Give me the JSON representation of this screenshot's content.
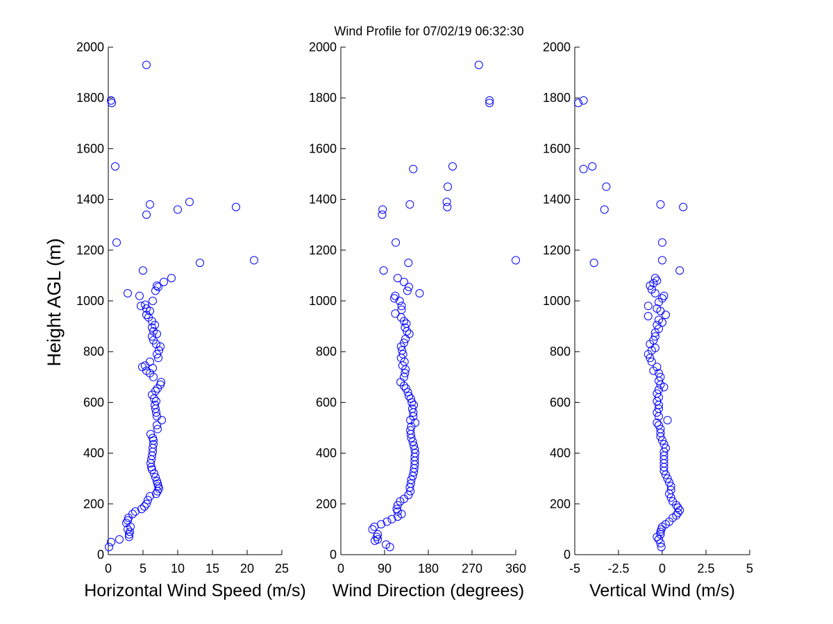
{
  "figure": {
    "title": "Wind Profile for  07/02/19 06:32:30",
    "marker_color": "#0000ff"
  },
  "chart_data": [
    {
      "type": "scatter",
      "id": "speed",
      "xlabel": "Horizontal Wind Speed (m/s)",
      "ylabel": "Height AGL (m)",
      "xlim": [
        0,
        25
      ],
      "ylim": [
        0,
        2000
      ],
      "xticks": [
        0,
        5,
        10,
        15,
        20,
        25
      ],
      "xtick_labels": [
        "0",
        "5",
        "10",
        "15",
        "20",
        "25"
      ],
      "yticks": [
        0,
        200,
        400,
        600,
        800,
        1000,
        1200,
        1400,
        1600,
        1800,
        2000
      ],
      "ytick_labels": [
        "0",
        "200",
        "400",
        "600",
        "800",
        "1000",
        "1200",
        "1400",
        "1600",
        "1800",
        "2000"
      ],
      "points": [
        [
          0.1,
          30
        ],
        [
          0.4,
          50
        ],
        [
          1.6,
          60
        ],
        [
          3.0,
          70
        ],
        [
          3.0,
          80
        ],
        [
          3.1,
          90
        ],
        [
          2.8,
          100
        ],
        [
          3.2,
          110
        ],
        [
          2.6,
          125
        ],
        [
          2.8,
          135
        ],
        [
          2.9,
          145
        ],
        [
          3.5,
          160
        ],
        [
          3.9,
          170
        ],
        [
          4.8,
          180
        ],
        [
          5.2,
          190
        ],
        [
          5.5,
          200
        ],
        [
          5.7,
          215
        ],
        [
          6.0,
          230
        ],
        [
          6.9,
          240
        ],
        [
          7.1,
          250
        ],
        [
          7.3,
          260
        ],
        [
          7.2,
          270
        ],
        [
          7.1,
          280
        ],
        [
          7.0,
          290
        ],
        [
          6.8,
          305
        ],
        [
          6.6,
          320
        ],
        [
          6.3,
          335
        ],
        [
          6.2,
          345
        ],
        [
          6.1,
          360
        ],
        [
          6.2,
          375
        ],
        [
          6.3,
          390
        ],
        [
          6.4,
          405
        ],
        [
          6.4,
          420
        ],
        [
          6.5,
          435
        ],
        [
          6.5,
          450
        ],
        [
          6.4,
          460
        ],
        [
          6.1,
          475
        ],
        [
          7.1,
          495
        ],
        [
          7.0,
          510
        ],
        [
          7.7,
          530
        ],
        [
          7.0,
          545
        ],
        [
          6.9,
          560
        ],
        [
          6.8,
          575
        ],
        [
          6.7,
          590
        ],
        [
          6.9,
          605
        ],
        [
          6.6,
          615
        ],
        [
          6.3,
          630
        ],
        [
          6.8,
          645
        ],
        [
          7.1,
          655
        ],
        [
          7.5,
          670
        ],
        [
          7.6,
          680
        ],
        [
          6.5,
          700
        ],
        [
          6.0,
          715
        ],
        [
          5.5,
          725
        ],
        [
          6.4,
          735
        ],
        [
          5.3,
          745
        ],
        [
          4.9,
          740
        ],
        [
          6.0,
          760
        ],
        [
          7.2,
          775
        ],
        [
          7.0,
          790
        ],
        [
          7.3,
          805
        ],
        [
          7.5,
          820
        ],
        [
          6.9,
          830
        ],
        [
          6.5,
          845
        ],
        [
          6.3,
          860
        ],
        [
          7.0,
          870
        ],
        [
          6.5,
          880
        ],
        [
          6.3,
          895
        ],
        [
          6.7,
          905
        ],
        [
          6.3,
          920
        ],
        [
          5.8,
          935
        ],
        [
          5.5,
          945
        ],
        [
          6.0,
          960
        ],
        [
          5.5,
          970
        ],
        [
          5.3,
          985
        ],
        [
          4.7,
          980
        ],
        [
          6.4,
          1000
        ],
        [
          4.5,
          1020
        ],
        [
          6.8,
          1040
        ],
        [
          2.8,
          1030
        ],
        [
          7.2,
          1055
        ],
        [
          7.0,
          1060
        ],
        [
          8.0,
          1075
        ],
        [
          9.1,
          1090
        ],
        [
          5.0,
          1120
        ],
        [
          13.2,
          1150
        ],
        [
          21.0,
          1160
        ],
        [
          1.2,
          1230
        ],
        [
          5.5,
          1340
        ],
        [
          10.0,
          1360
        ],
        [
          18.4,
          1370
        ],
        [
          6.0,
          1380
        ],
        [
          11.7,
          1390
        ],
        [
          1.0,
          1530
        ],
        [
          0.5,
          1780
        ],
        [
          0.4,
          1790
        ],
        [
          5.5,
          1930
        ]
      ]
    },
    {
      "type": "scatter",
      "id": "direction",
      "xlabel": "Wind Direction (degrees)",
      "xlim": [
        0,
        360
      ],
      "ylim": [
        0,
        2000
      ],
      "xticks": [
        0,
        90,
        180,
        270,
        360
      ],
      "xtick_labels": [
        "0",
        "90",
        "180",
        "270",
        "360"
      ],
      "yticks": [
        0,
        200,
        400,
        600,
        800,
        1000,
        1200,
        1400,
        1600,
        1800,
        2000
      ],
      "ytick_labels": [
        "0",
        "200",
        "400",
        "600",
        "800",
        "1000",
        "1200",
        "1400",
        "1600",
        "1800",
        "2000"
      ],
      "points": [
        [
          101,
          30
        ],
        [
          93,
          40
        ],
        [
          70,
          55
        ],
        [
          76,
          60
        ],
        [
          74,
          70
        ],
        [
          76,
          80
        ],
        [
          65,
          100
        ],
        [
          69,
          110
        ],
        [
          83,
          120
        ],
        [
          95,
          130
        ],
        [
          105,
          140
        ],
        [
          117,
          150
        ],
        [
          125,
          160
        ],
        [
          117,
          170
        ],
        [
          115,
          180
        ],
        [
          117,
          195
        ],
        [
          122,
          210
        ],
        [
          130,
          220
        ],
        [
          139,
          235
        ],
        [
          143,
          250
        ],
        [
          142,
          265
        ],
        [
          144,
          280
        ],
        [
          145,
          295
        ],
        [
          148,
          310
        ],
        [
          150,
          325
        ],
        [
          151,
          340
        ],
        [
          152,
          355
        ],
        [
          152,
          370
        ],
        [
          152,
          385
        ],
        [
          153,
          400
        ],
        [
          152,
          415
        ],
        [
          150,
          430
        ],
        [
          148,
          445
        ],
        [
          145,
          460
        ],
        [
          144,
          475
        ],
        [
          143,
          490
        ],
        [
          145,
          505
        ],
        [
          153,
          520
        ],
        [
          143,
          530
        ],
        [
          149,
          545
        ],
        [
          149,
          560
        ],
        [
          147,
          575
        ],
        [
          150,
          590
        ],
        [
          146,
          600
        ],
        [
          144,
          615
        ],
        [
          140,
          625
        ],
        [
          138,
          640
        ],
        [
          134,
          655
        ],
        [
          130,
          665
        ],
        [
          123,
          680
        ],
        [
          130,
          700
        ],
        [
          132,
          715
        ],
        [
          133,
          730
        ],
        [
          127,
          745
        ],
        [
          131,
          760
        ],
        [
          124,
          775
        ],
        [
          128,
          790
        ],
        [
          126,
          805
        ],
        [
          124,
          820
        ],
        [
          130,
          835
        ],
        [
          133,
          850
        ],
        [
          141,
          870
        ],
        [
          136,
          880
        ],
        [
          132,
          895
        ],
        [
          135,
          910
        ],
        [
          130,
          920
        ],
        [
          124,
          935
        ],
        [
          112,
          950
        ],
        [
          125,
          965
        ],
        [
          125,
          980
        ],
        [
          121,
          1000
        ],
        [
          110,
          1010
        ],
        [
          112,
          1020
        ],
        [
          162,
          1030
        ],
        [
          137,
          1040
        ],
        [
          140,
          1055
        ],
        [
          130,
          1075
        ],
        [
          117,
          1090
        ],
        [
          88,
          1120
        ],
        [
          139,
          1150
        ],
        [
          360,
          1160
        ],
        [
          113,
          1230
        ],
        [
          85,
          1340
        ],
        [
          86,
          1360
        ],
        [
          219,
          1370
        ],
        [
          142,
          1380
        ],
        [
          218,
          1390
        ],
        [
          220,
          1450
        ],
        [
          149,
          1520
        ],
        [
          230,
          1530
        ],
        [
          306,
          1780
        ],
        [
          306,
          1790
        ],
        [
          284,
          1930
        ]
      ]
    },
    {
      "type": "scatter",
      "id": "vertical",
      "xlabel": "Vertical Wind (m/s)",
      "xlim": [
        -5,
        5
      ],
      "ylim": [
        0,
        2000
      ],
      "xticks": [
        -5,
        -2.5,
        0,
        2.5,
        5
      ],
      "xtick_labels": [
        "-5",
        "-2.5",
        "0",
        "2.5",
        "5"
      ],
      "yticks": [
        0,
        200,
        400,
        600,
        800,
        1000,
        1200,
        1400,
        1600,
        1800,
        2000
      ],
      "ytick_labels": [
        "0",
        "200",
        "400",
        "600",
        "800",
        "1000",
        "1200",
        "1400",
        "1600",
        "1800",
        "2000"
      ],
      "points": [
        [
          -0.05,
          30
        ],
        [
          -0.1,
          45
        ],
        [
          -0.2,
          60
        ],
        [
          -0.3,
          70
        ],
        [
          -0.1,
          80
        ],
        [
          -0.1,
          90
        ],
        [
          -0.05,
          100
        ],
        [
          0.0,
          110
        ],
        [
          0.2,
          120
        ],
        [
          0.4,
          130
        ],
        [
          0.6,
          145
        ],
        [
          0.8,
          155
        ],
        [
          0.9,
          165
        ],
        [
          1.0,
          175
        ],
        [
          0.9,
          185
        ],
        [
          0.8,
          195
        ],
        [
          0.6,
          210
        ],
        [
          0.5,
          225
        ],
        [
          0.4,
          240
        ],
        [
          0.5,
          255
        ],
        [
          0.5,
          270
        ],
        [
          0.4,
          285
        ],
        [
          0.3,
          300
        ],
        [
          0.2,
          315
        ],
        [
          0.1,
          330
        ],
        [
          0.1,
          345
        ],
        [
          0.1,
          360
        ],
        [
          0.1,
          375
        ],
        [
          0.1,
          390
        ],
        [
          0.1,
          405
        ],
        [
          0.2,
          420
        ],
        [
          0.1,
          435
        ],
        [
          0.0,
          450
        ],
        [
          -0.1,
          465
        ],
        [
          -0.1,
          480
        ],
        [
          -0.1,
          495
        ],
        [
          -0.2,
          510
        ],
        [
          0.3,
          530
        ],
        [
          -0.3,
          520
        ],
        [
          -0.2,
          545
        ],
        [
          -0.3,
          560
        ],
        [
          -0.2,
          575
        ],
        [
          -0.2,
          590
        ],
        [
          -0.3,
          605
        ],
        [
          -0.2,
          620
        ],
        [
          -0.3,
          635
        ],
        [
          -0.2,
          650
        ],
        [
          0.1,
          660
        ],
        [
          -0.1,
          670
        ],
        [
          -0.2,
          685
        ],
        [
          -0.1,
          700
        ],
        [
          -0.2,
          715
        ],
        [
          -0.5,
          725
        ],
        [
          -0.3,
          740
        ],
        [
          -0.6,
          760
        ],
        [
          -0.7,
          775
        ],
        [
          -0.8,
          790
        ],
        [
          -0.6,
          805
        ],
        [
          -0.4,
          815
        ],
        [
          -0.7,
          830
        ],
        [
          -0.5,
          845
        ],
        [
          -0.4,
          860
        ],
        [
          -0.4,
          875
        ],
        [
          -0.2,
          890
        ],
        [
          -0.3,
          905
        ],
        [
          0.0,
          915
        ],
        [
          -0.2,
          925
        ],
        [
          0.2,
          945
        ],
        [
          -0.8,
          940
        ],
        [
          -0.1,
          960
        ],
        [
          -0.3,
          970
        ],
        [
          -0.8,
          980
        ],
        [
          -0.2,
          995
        ],
        [
          0.0,
          1010
        ],
        [
          0.1,
          1020
        ],
        [
          -0.4,
          1030
        ],
        [
          -0.6,
          1045
        ],
        [
          -0.7,
          1060
        ],
        [
          -0.5,
          1070
        ],
        [
          -0.3,
          1080
        ],
        [
          -0.4,
          1090
        ],
        [
          1.0,
          1120
        ],
        [
          -3.9,
          1150
        ],
        [
          0.0,
          1160
        ],
        [
          0.0,
          1230
        ],
        [
          -3.3,
          1360
        ],
        [
          1.2,
          1370
        ],
        [
          -0.1,
          1380
        ],
        [
          -3.2,
          1450
        ],
        [
          -4.5,
          1520
        ],
        [
          -4.0,
          1530
        ],
        [
          -4.8,
          1780
        ],
        [
          -4.5,
          1790
        ]
      ]
    }
  ]
}
